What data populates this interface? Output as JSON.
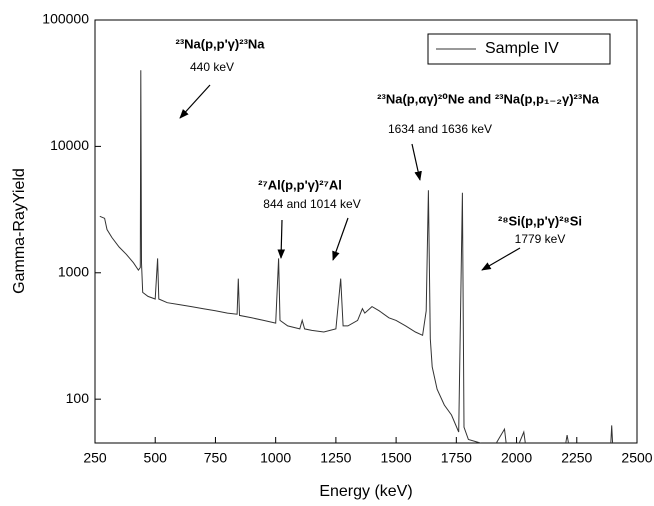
{
  "chart_data": {
    "type": "line",
    "xlabel": "Energy (keV)",
    "ylabel": "Gamma-RayYield",
    "log_y": true,
    "legend": "upper right",
    "xlim": [
      250,
      2500
    ],
    "ylim": [
      45,
      100000
    ],
    "xticks": [
      250,
      500,
      750,
      1000,
      1250,
      1500,
      1750,
      2000,
      2250,
      2500
    ],
    "yticks": [
      100,
      1000,
      10000,
      100000
    ],
    "annotations": [
      {
        "text": "²³Na(p,p'γ)²³Na",
        "sub": "440 keV"
      },
      {
        "text": "²⁷Al(p,p'γ)²⁷Al",
        "sub": "844 and 1014 keV"
      },
      {
        "text": "²³Na(p,αγ)²⁰Ne and ²³Na(p,p₁₋₂γ)²³Na",
        "sub": "1634 and 1636 keV"
      },
      {
        "text": "²⁸Si(p,p'γ)²⁸Si",
        "sub": "1779 keV"
      }
    ],
    "x": [
      270,
      290,
      300,
      320,
      350,
      380,
      410,
      430,
      438,
      440,
      443,
      448,
      470,
      500,
      510,
      515,
      550,
      600,
      650,
      700,
      750,
      800,
      840,
      845,
      850,
      900,
      950,
      1000,
      1012,
      1018,
      1050,
      1100,
      1110,
      1120,
      1150,
      1200,
      1250,
      1270,
      1280,
      1300,
      1340,
      1360,
      1370,
      1400,
      1430,
      1470,
      1500,
      1540,
      1580,
      1610,
      1625,
      1634,
      1642,
      1650,
      1670,
      1700,
      1730,
      1760,
      1775,
      1782,
      1800,
      1850,
      1900,
      1950,
      1960,
      2000,
      2030,
      2040,
      2200,
      2210,
      2220,
      2390,
      2395,
      2400
    ],
    "series": [
      {
        "name": "Sample IV",
        "color": "#333333",
        "values": [
          2800,
          2700,
          2200,
          1900,
          1600,
          1400,
          1200,
          1050,
          1100,
          40000,
          1200,
          700,
          650,
          620,
          1300,
          620,
          580,
          560,
          540,
          520,
          500,
          480,
          470,
          900,
          460,
          440,
          420,
          400,
          1300,
          420,
          380,
          360,
          420,
          360,
          350,
          340,
          360,
          900,
          380,
          380,
          420,
          520,
          480,
          540,
          500,
          440,
          420,
          380,
          340,
          320,
          500,
          4500,
          300,
          180,
          120,
          90,
          75,
          55,
          4300,
          60,
          48,
          45,
          40,
          58,
          40,
          40,
          55,
          40,
          40,
          52,
          40,
          40,
          62,
          40
        ]
      }
    ]
  }
}
